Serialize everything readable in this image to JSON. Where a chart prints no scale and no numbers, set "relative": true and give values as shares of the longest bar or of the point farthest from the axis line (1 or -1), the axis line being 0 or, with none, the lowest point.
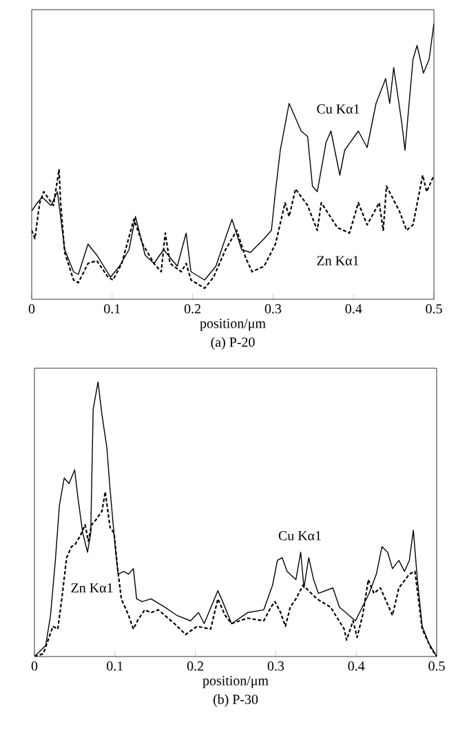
{
  "chart_data": [
    {
      "type": "line",
      "title": "(a) P-20",
      "xlabel": "position/μm",
      "relative": true,
      "xlim": [
        0,
        0.5
      ],
      "xticks": [
        0,
        0.1,
        0.2,
        0.3,
        0.4,
        0.5
      ],
      "legend": false,
      "grid": false,
      "series": [
        {
          "name": "Cu Kα1",
          "color": "#000000",
          "line_style": "solid",
          "x": [
            0,
            0.007,
            0.013,
            0.024,
            0.032,
            0.041,
            0.052,
            0.058,
            0.07,
            0.081,
            0.098,
            0.109,
            0.121,
            0.129,
            0.141,
            0.152,
            0.164,
            0.181,
            0.192,
            0.198,
            0.215,
            0.229,
            0.243,
            0.249,
            0.261,
            0.272,
            0.289,
            0.298,
            0.303,
            0.309,
            0.32,
            0.335,
            0.343,
            0.349,
            0.355,
            0.366,
            0.372,
            0.383,
            0.389,
            0.406,
            0.417,
            0.428,
            0.44,
            0.445,
            0.45,
            0.46,
            0.464,
            0.474,
            0.479,
            0.487,
            0.494,
            0.5
          ],
          "values": [
            0.32,
            0.35,
            0.37,
            0.34,
            0.39,
            0.18,
            0.1,
            0.09,
            0.2,
            0.16,
            0.08,
            0.12,
            0.18,
            0.3,
            0.16,
            0.13,
            0.18,
            0.12,
            0.24,
            0.1,
            0.07,
            0.12,
            0.24,
            0.29,
            0.18,
            0.17,
            0.22,
            0.25,
            0.39,
            0.54,
            0.71,
            0.61,
            0.59,
            0.41,
            0.39,
            0.57,
            0.61,
            0.45,
            0.54,
            0.61,
            0.55,
            0.71,
            0.8,
            0.71,
            0.84,
            0.64,
            0.54,
            0.87,
            0.92,
            0.82,
            0.87,
            1
          ]
        },
        {
          "name": "Zn Kα1",
          "color": "#000000",
          "line_style": "dashed",
          "x": [
            0,
            0.004,
            0.01,
            0.015,
            0.027,
            0.034,
            0.036,
            0.041,
            0.052,
            0.058,
            0.07,
            0.081,
            0.095,
            0.101,
            0.112,
            0.127,
            0.138,
            0.152,
            0.161,
            0.166,
            0.172,
            0.186,
            0.192,
            0.198,
            0.215,
            0.226,
            0.241,
            0.255,
            0.266,
            0.274,
            0.289,
            0.303,
            0.315,
            0.32,
            0.328,
            0.343,
            0.355,
            0.36,
            0.38,
            0.395,
            0.406,
            0.417,
            0.432,
            0.437,
            0.441,
            0.457,
            0.466,
            0.474,
            0.486,
            0.491,
            0.5
          ],
          "values": [
            0.25,
            0.22,
            0.35,
            0.39,
            0.34,
            0.47,
            0.35,
            0.17,
            0.07,
            0.06,
            0.13,
            0.14,
            0.08,
            0.07,
            0.13,
            0.29,
            0.2,
            0.13,
            0.1,
            0.24,
            0.13,
            0.1,
            0.13,
            0.07,
            0.04,
            0.08,
            0.18,
            0.25,
            0.15,
            0.1,
            0.12,
            0.2,
            0.35,
            0.3,
            0.4,
            0.34,
            0.25,
            0.35,
            0.26,
            0.24,
            0.35,
            0.27,
            0.35,
            0.25,
            0.41,
            0.32,
            0.25,
            0.27,
            0.45,
            0.39,
            0.45
          ]
        }
      ]
    },
    {
      "type": "line",
      "title": "(b) P-30",
      "xlabel": "position/μm",
      "relative": true,
      "xlim": [
        0,
        0.5
      ],
      "xticks": [
        0,
        0.1,
        0.2,
        0.3,
        0.4,
        0.5
      ],
      "legend": false,
      "grid": false,
      "series": [
        {
          "name": "Cu Kα1",
          "color": "#000000",
          "line_style": "solid",
          "x": [
            0,
            0.014,
            0.02,
            0.026,
            0.031,
            0.037,
            0.043,
            0.05,
            0.054,
            0.06,
            0.066,
            0.07,
            0.073,
            0.079,
            0.084,
            0.09,
            0.094,
            0.1,
            0.104,
            0.111,
            0.117,
            0.123,
            0.127,
            0.134,
            0.145,
            0.162,
            0.177,
            0.194,
            0.204,
            0.211,
            0.228,
            0.234,
            0.245,
            0.265,
            0.285,
            0.296,
            0.302,
            0.308,
            0.314,
            0.325,
            0.331,
            0.335,
            0.341,
            0.347,
            0.353,
            0.371,
            0.379,
            0.399,
            0.416,
            0.425,
            0.432,
            0.439,
            0.445,
            0.453,
            0.46,
            0.466,
            0.471,
            0.476,
            0.482,
            0.49,
            0.5
          ],
          "values": [
            0,
            0.04,
            0.15,
            0.35,
            0.55,
            0.65,
            0.63,
            0.68,
            0.58,
            0.45,
            0.38,
            0.45,
            0.9,
            1,
            0.88,
            0.76,
            0.61,
            0.41,
            0.3,
            0.31,
            0.3,
            0.32,
            0.21,
            0.2,
            0.21,
            0.18,
            0.15,
            0.13,
            0.16,
            0.12,
            0.24,
            0.2,
            0.12,
            0.16,
            0.17,
            0.26,
            0.35,
            0.36,
            0.31,
            0.28,
            0.38,
            0.25,
            0.36,
            0.28,
            0.23,
            0.25,
            0.18,
            0.13,
            0.23,
            0.3,
            0.4,
            0.38,
            0.32,
            0.35,
            0.31,
            0.35,
            0.46,
            0.28,
            0.11,
            0.05,
            0
          ]
        },
        {
          "name": "Zn Kα1",
          "color": "#000000",
          "line_style": "dashed",
          "x": [
            0,
            0.011,
            0.017,
            0.023,
            0.029,
            0.034,
            0.04,
            0.046,
            0.051,
            0.057,
            0.063,
            0.067,
            0.071,
            0.077,
            0.084,
            0.088,
            0.094,
            0.099,
            0.103,
            0.108,
            0.117,
            0.123,
            0.128,
            0.137,
            0.145,
            0.154,
            0.162,
            0.174,
            0.188,
            0.202,
            0.219,
            0.228,
            0.237,
            0.245,
            0.265,
            0.285,
            0.294,
            0.299,
            0.306,
            0.312,
            0.318,
            0.325,
            0.334,
            0.351,
            0.368,
            0.385,
            0.388,
            0.396,
            0.401,
            0.408,
            0.415,
            0.422,
            0.43,
            0.445,
            0.453,
            0.466,
            0.473,
            0.482,
            0.493,
            0.5
          ],
          "values": [
            0,
            0.01,
            0.06,
            0.11,
            0.1,
            0.21,
            0.36,
            0.4,
            0.41,
            0.44,
            0.48,
            0.42,
            0.48,
            0.5,
            0.53,
            0.6,
            0.47,
            0.45,
            0.33,
            0.21,
            0.15,
            0.1,
            0.13,
            0.17,
            0.16,
            0.17,
            0.15,
            0.12,
            0.08,
            0.11,
            0.1,
            0.21,
            0.15,
            0.12,
            0.14,
            0.13,
            0.18,
            0.2,
            0.16,
            0.11,
            0.18,
            0.21,
            0.26,
            0.21,
            0.18,
            0.1,
            0.06,
            0.13,
            0.07,
            0.15,
            0.28,
            0.23,
            0.25,
            0.15,
            0.25,
            0.3,
            0.31,
            0.1,
            0.03,
            0
          ]
        }
      ]
    }
  ]
}
